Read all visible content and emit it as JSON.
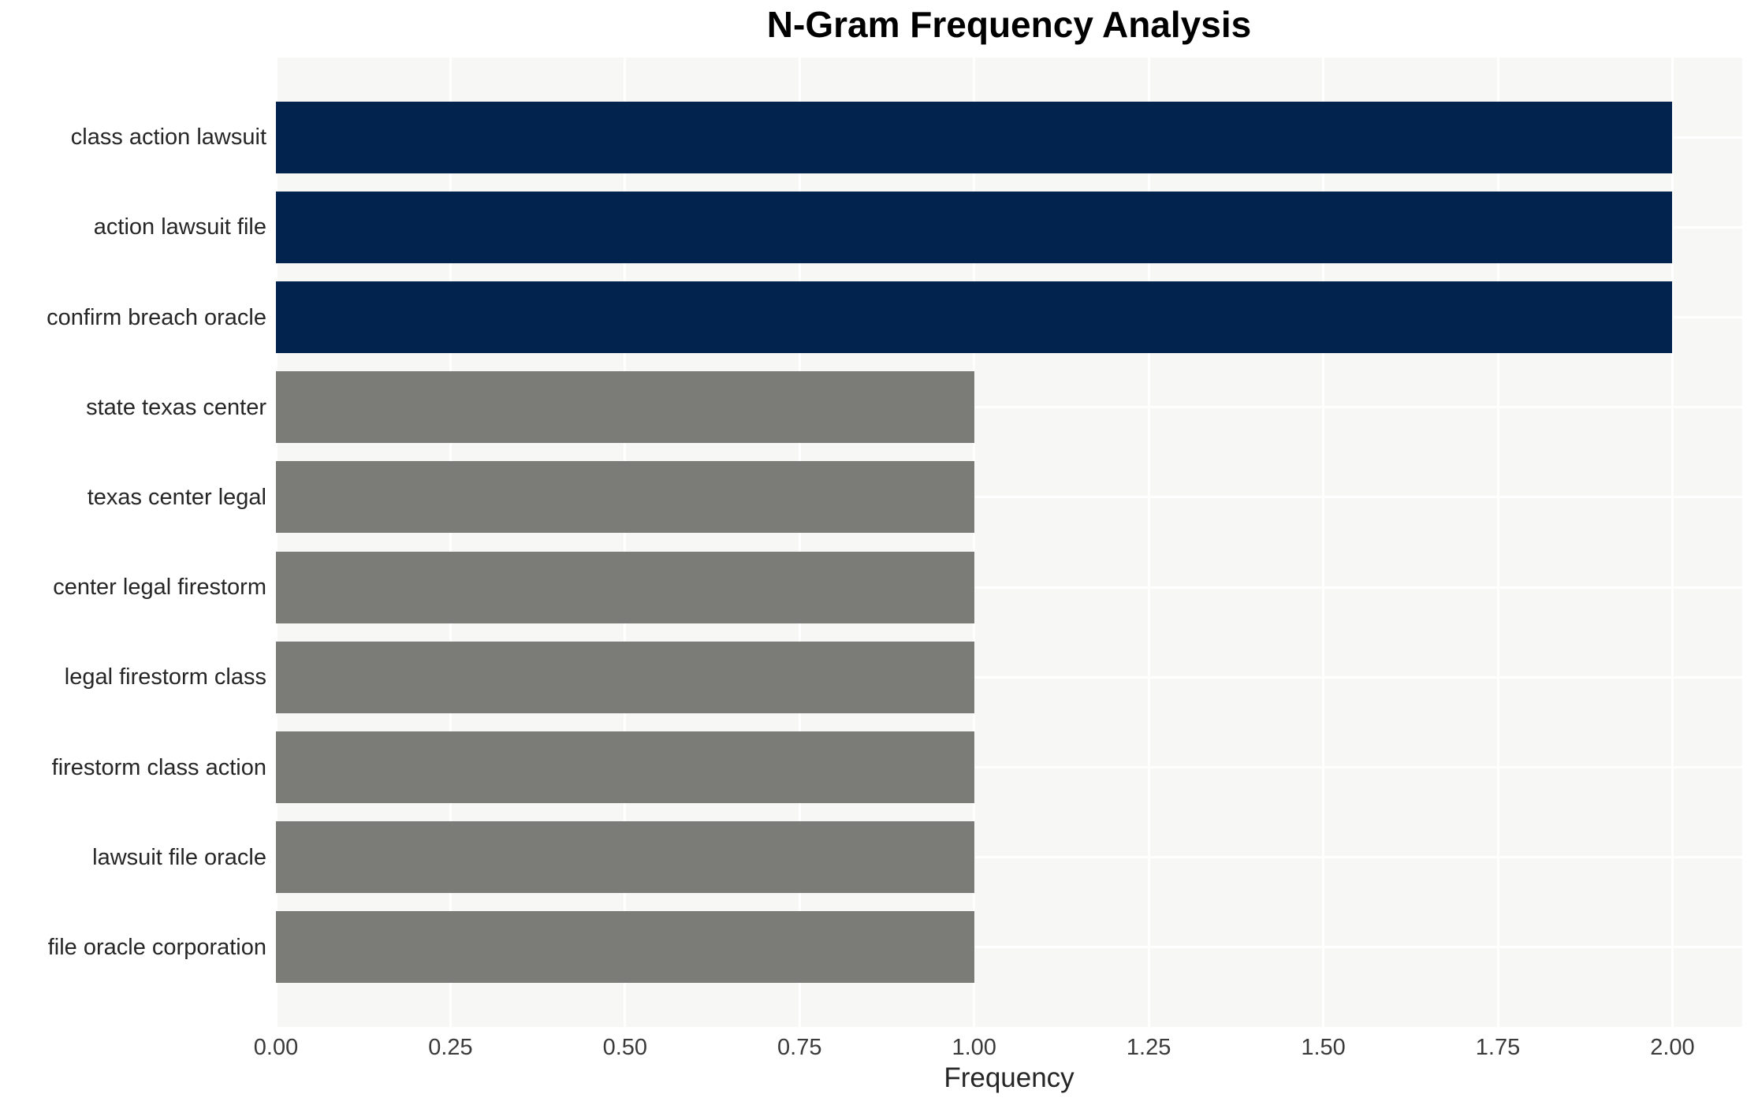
{
  "chart_data": {
    "type": "bar",
    "orientation": "horizontal",
    "title": "N-Gram Frequency Analysis",
    "xlabel": "Frequency",
    "ylabel": "",
    "categories": [
      "class action lawsuit",
      "action lawsuit file",
      "confirm breach oracle",
      "state texas center",
      "texas center legal",
      "center legal firestorm",
      "legal firestorm class",
      "firestorm class action",
      "lawsuit file oracle",
      "file oracle corporation"
    ],
    "values": [
      2,
      2,
      2,
      1,
      1,
      1,
      1,
      1,
      1,
      1
    ],
    "bar_colors": [
      "#02234d",
      "#02234d",
      "#02234d",
      "#7b7b77",
      "#7b7b77",
      "#7b7b77",
      "#7b7b77",
      "#7b7b77",
      "#7b7b77",
      "#7b7b77"
    ],
    "xlim": [
      0,
      2.1
    ],
    "xticks": [
      0.0,
      0.25,
      0.5,
      0.75,
      1.0,
      1.25,
      1.5,
      1.75,
      2.0
    ],
    "xtick_labels": [
      "0.00",
      "0.25",
      "0.50",
      "0.75",
      "1.00",
      "1.25",
      "1.50",
      "1.75",
      "2.00"
    ],
    "grid": true,
    "legend": "none",
    "colors": {
      "plot_background": "#f7f7f6",
      "grid_line": "#ffffff",
      "title_text": "#000000",
      "tick_text": "#3a3a3a",
      "label_text": "#262626",
      "bar_high": "#02234d",
      "bar_low": "#7b7b77"
    }
  }
}
